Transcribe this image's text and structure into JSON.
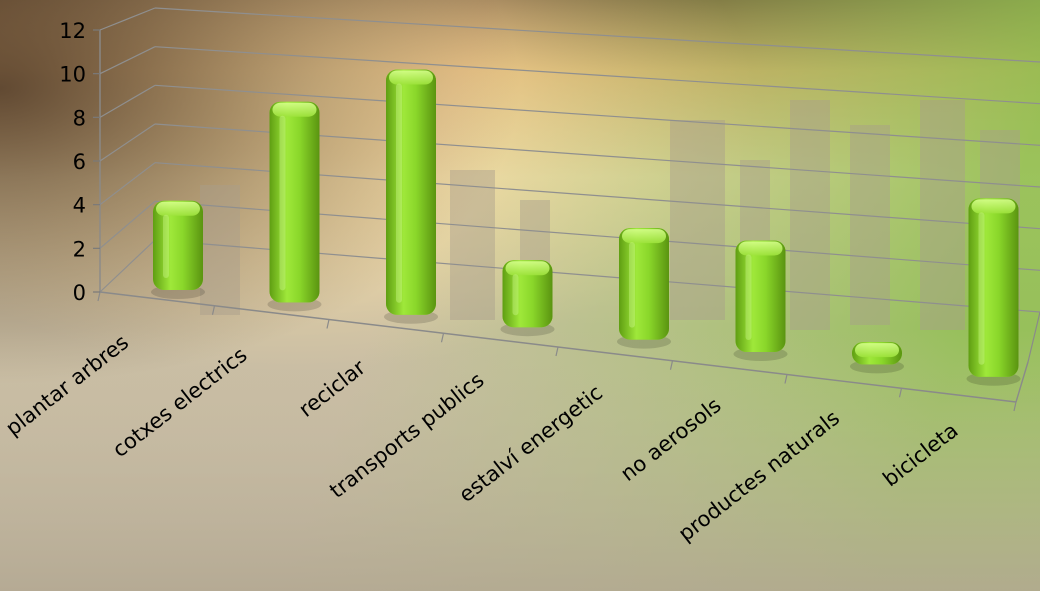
{
  "chart_data": {
    "type": "bar",
    "categories": [
      "plantar arbres",
      "cotxes electrics",
      "reciclar",
      "transports publics",
      "estalví energetic",
      "no aerosols",
      "productes naturals",
      "bicicleta"
    ],
    "values": [
      4,
      9,
      11,
      3,
      5,
      5,
      1,
      8
    ],
    "ylim": [
      0,
      12
    ],
    "yticks": [
      "0",
      "2",
      "4",
      "6",
      "8",
      "10",
      "12"
    ],
    "grid": true,
    "bar_color": "#8ee02a"
  }
}
